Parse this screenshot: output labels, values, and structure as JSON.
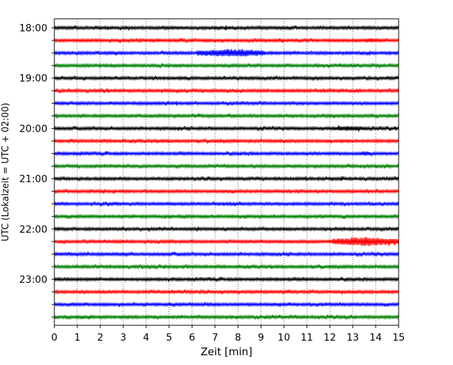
{
  "chart_data": {
    "type": "line",
    "title": "",
    "xlabel": "Zeit  [min]",
    "ylabel": "UTC (Lokalzeit = UTC + 02:00)",
    "xlim": [
      0,
      15
    ],
    "x_ticks": [
      "0",
      "1",
      "2",
      "3",
      "4",
      "5",
      "6",
      "7",
      "8",
      "9",
      "10",
      "11",
      "12",
      "13",
      "14",
      "15"
    ],
    "y_ticks": [
      "18:00",
      "19:00",
      "20:00",
      "21:00",
      "22:00",
      "23:00"
    ],
    "row_interval_minutes": 15,
    "grid": "vertical dotted at each minute",
    "row_colors": [
      "#000000",
      "#ff0000",
      "#0000ff",
      "#008000"
    ],
    "rows": [
      {
        "time": "18:00",
        "color": "#000000",
        "events": []
      },
      {
        "time": "18:15",
        "color": "#ff0000",
        "events": [
          {
            "start": 13.5,
            "end": 14.1,
            "level": 0.35
          }
        ]
      },
      {
        "time": "18:30",
        "color": "#0000ff",
        "events": [
          {
            "start": 6.2,
            "end": 9.2,
            "level": 0.8
          }
        ]
      },
      {
        "time": "18:45",
        "color": "#008000",
        "events": []
      },
      {
        "time": "19:00",
        "color": "#000000",
        "events": []
      },
      {
        "time": "19:15",
        "color": "#ff0000",
        "events": []
      },
      {
        "time": "19:30",
        "color": "#0000ff",
        "events": []
      },
      {
        "time": "19:45",
        "color": "#008000",
        "events": []
      },
      {
        "time": "20:00",
        "color": "#000000",
        "events": [
          {
            "start": 12.2,
            "end": 13.5,
            "level": 0.4
          }
        ]
      },
      {
        "time": "20:15",
        "color": "#ff0000",
        "events": []
      },
      {
        "time": "20:30",
        "color": "#0000ff",
        "events": [
          {
            "start": 13.3,
            "end": 13.8,
            "level": 0.3
          }
        ]
      },
      {
        "time": "20:45",
        "color": "#008000",
        "events": []
      },
      {
        "time": "21:00",
        "color": "#000000",
        "events": []
      },
      {
        "time": "21:15",
        "color": "#ff0000",
        "events": []
      },
      {
        "time": "21:30",
        "color": "#0000ff",
        "events": []
      },
      {
        "time": "21:45",
        "color": "#008000",
        "events": []
      },
      {
        "time": "22:00",
        "color": "#000000",
        "events": []
      },
      {
        "time": "22:15",
        "color": "#ff0000",
        "events": [
          {
            "start": 12.1,
            "end": 15.0,
            "level": 1.0
          }
        ]
      },
      {
        "time": "22:30",
        "color": "#0000ff",
        "events": []
      },
      {
        "time": "22:45",
        "color": "#008000",
        "events": []
      },
      {
        "time": "23:00",
        "color": "#000000",
        "events": []
      },
      {
        "time": "23:15",
        "color": "#ff0000",
        "events": []
      },
      {
        "time": "23:30",
        "color": "#0000ff",
        "events": []
      },
      {
        "time": "23:45",
        "color": "#008000",
        "events": []
      }
    ]
  }
}
